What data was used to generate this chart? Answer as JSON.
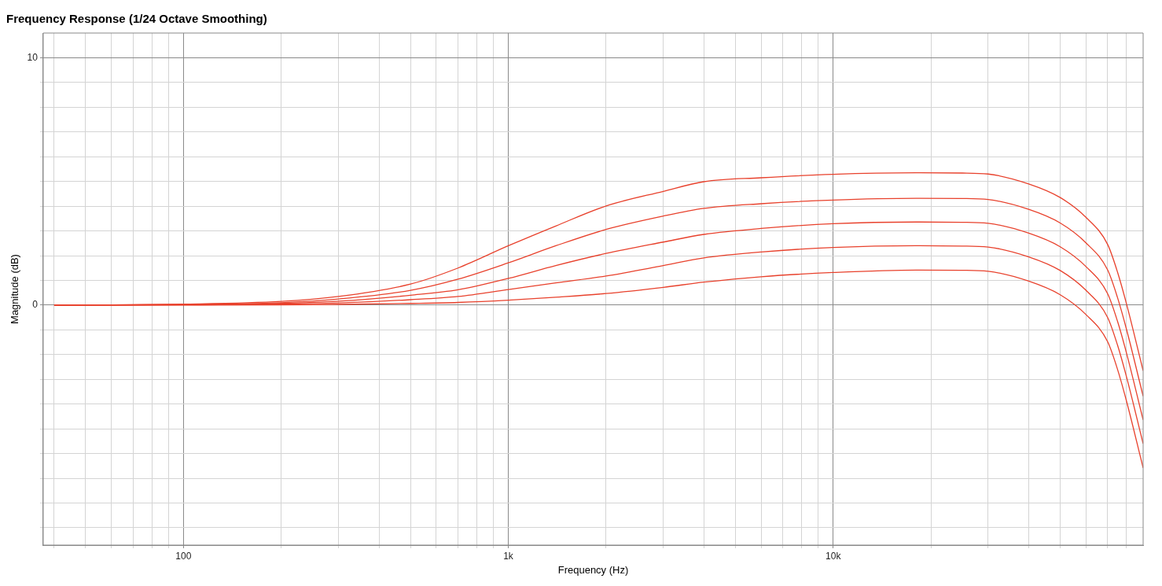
{
  "chart_data": {
    "type": "line",
    "title": "Frequency Response (1/24 Octave Smoothing)",
    "xlabel": "Frequency (Hz)",
    "ylabel": "Magnitude (dB)",
    "log": "x",
    "grid": true,
    "x": [
      40,
      100,
      200,
      300,
      500,
      700,
      1000,
      1400,
      2000,
      3000,
      4000,
      6000,
      10000,
      18000,
      25000,
      30000,
      40000,
      50000,
      60000,
      70000,
      75000,
      80000,
      90000
    ],
    "xlim": [
      37,
      90000
    ],
    "xticks": [
      {
        "value": 40,
        "label": null
      },
      {
        "value": 50,
        "label": null
      },
      {
        "value": 60,
        "label": null
      },
      {
        "value": 70,
        "label": null
      },
      {
        "value": 80,
        "label": null
      },
      {
        "value": 90,
        "label": null
      },
      100,
      {
        "value": 200,
        "label": null
      },
      {
        "value": 300,
        "label": null
      },
      {
        "value": 400,
        "label": null
      },
      {
        "value": 500,
        "label": null
      },
      {
        "value": 600,
        "label": null
      },
      {
        "value": 700,
        "label": null
      },
      {
        "value": 800,
        "label": null
      },
      {
        "value": 900,
        "label": null
      },
      {
        "value": 1000,
        "label": "1k"
      },
      {
        "value": 2000,
        "label": null
      },
      {
        "value": 3000,
        "label": null
      },
      {
        "value": 4000,
        "label": null
      },
      {
        "value": 5000,
        "label": null
      },
      {
        "value": 6000,
        "label": null
      },
      {
        "value": 7000,
        "label": null
      },
      {
        "value": 8000,
        "label": null
      },
      {
        "value": 9000,
        "label": null
      },
      {
        "value": 10000,
        "label": "10k"
      },
      {
        "value": 20000,
        "label": null
      },
      {
        "value": 30000,
        "label": null
      },
      {
        "value": 40000,
        "label": null
      },
      {
        "value": 50000,
        "label": null
      },
      {
        "value": 60000,
        "label": null
      },
      {
        "value": 70000,
        "label": null
      },
      {
        "value": 80000,
        "label": null
      }
    ],
    "ylim": [
      -9.7,
      11
    ],
    "yticks": [
      {
        "value": -9,
        "label": null
      },
      {
        "value": -8,
        "label": null
      },
      {
        "value": -7,
        "label": null
      },
      {
        "value": -6,
        "label": null
      },
      {
        "value": -5,
        "label": null
      },
      {
        "value": -4,
        "label": null
      },
      {
        "value": -3,
        "label": null
      },
      {
        "value": -2,
        "label": null
      },
      {
        "value": -1,
        "label": null
      },
      0,
      {
        "value": 1,
        "label": null
      },
      {
        "value": 2,
        "label": null
      },
      {
        "value": 3,
        "label": null
      },
      {
        "value": 4,
        "label": null
      },
      {
        "value": 5,
        "label": null
      },
      {
        "value": 6,
        "label": null
      },
      {
        "value": 7,
        "label": null
      },
      {
        "value": 8,
        "label": null
      },
      {
        "value": 9,
        "label": null
      },
      10
    ],
    "series": [
      {
        "color": "#e8412c",
        "values": [
          0,
          0.04,
          0.15,
          0.35,
          0.85,
          1.5,
          2.4,
          3.2,
          4.01,
          4.6,
          4.99,
          5.15,
          5.29,
          5.35,
          5.34,
          5.3,
          4.9,
          4.35,
          3.55,
          2.45,
          1.35,
          0.05,
          -2.65
        ]
      },
      {
        "color": "#e8412c",
        "values": [
          0,
          0.03,
          0.1,
          0.25,
          0.6,
          1.05,
          1.71,
          2.4,
          3.06,
          3.6,
          3.91,
          4.1,
          4.25,
          4.32,
          4.31,
          4.27,
          3.87,
          3.32,
          2.52,
          1.42,
          0.32,
          -0.98,
          -3.68
        ]
      },
      {
        "color": "#e8412c",
        "values": [
          0,
          0.02,
          0.07,
          0.16,
          0.4,
          0.62,
          1.08,
          1.6,
          2.09,
          2.55,
          2.86,
          3.1,
          3.29,
          3.36,
          3.35,
          3.31,
          2.91,
          2.36,
          1.56,
          0.46,
          -0.64,
          -1.94,
          -4.64
        ]
      },
      {
        "color": "#e8412c",
        "values": [
          0,
          0.01,
          0.04,
          0.09,
          0.22,
          0.35,
          0.63,
          0.9,
          1.18,
          1.6,
          1.91,
          2.15,
          2.33,
          2.4,
          2.39,
          2.35,
          1.95,
          1.4,
          0.6,
          -0.5,
          -1.6,
          -2.9,
          -5.6
        ]
      },
      {
        "color": "#e8412c",
        "values": [
          0,
          0,
          0.01,
          0.03,
          0.07,
          0.11,
          0.2,
          0.32,
          0.47,
          0.72,
          0.93,
          1.15,
          1.32,
          1.42,
          1.41,
          1.37,
          0.97,
          0.42,
          -0.38,
          -1.48,
          -2.58,
          -3.88,
          -6.58
        ]
      }
    ]
  }
}
